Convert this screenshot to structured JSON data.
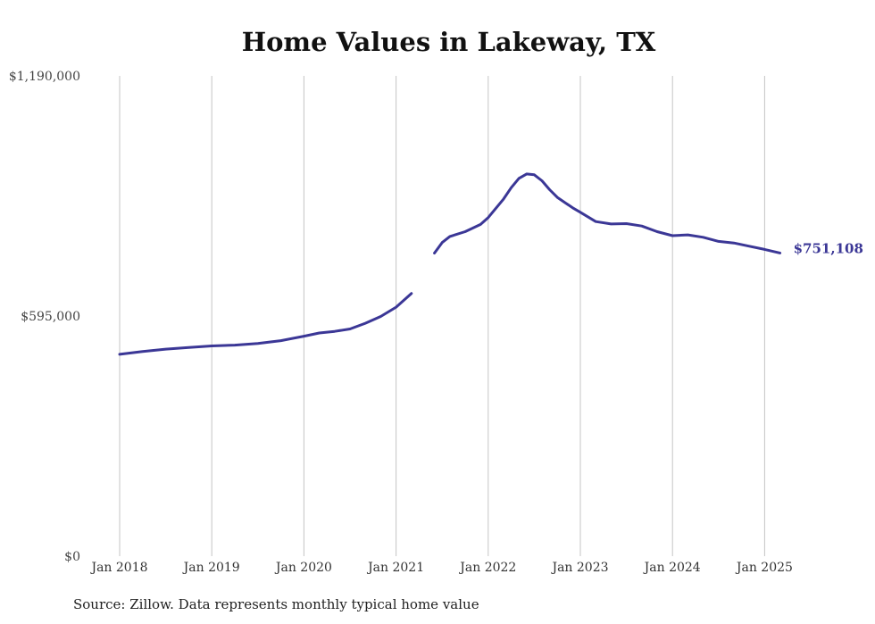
{
  "chart_data": {
    "type": "line",
    "title": "Home Values in Lakeway, TX",
    "xlabel": "",
    "ylabel": "",
    "ylim": [
      0,
      1190000
    ],
    "y_ticks": [
      {
        "value": 1190000,
        "label": "$1,190,000"
      },
      {
        "value": 595000,
        "label": "$595,000"
      },
      {
        "value": 0,
        "label": "$0"
      }
    ],
    "x_ticks": [
      {
        "value": "2018-01",
        "label": "Jan 2018"
      },
      {
        "value": "2019-01",
        "label": "Jan 2019"
      },
      {
        "value": "2020-01",
        "label": "Jan 2020"
      },
      {
        "value": "2021-01",
        "label": "Jan 2021"
      },
      {
        "value": "2022-01",
        "label": "Jan 2022"
      },
      {
        "value": "2023-01",
        "label": "Jan 2023"
      },
      {
        "value": "2024-01",
        "label": "Jan 2024"
      },
      {
        "value": "2025-01",
        "label": "Jan 2025"
      }
    ],
    "x_range": [
      "2018-01",
      "2025-03"
    ],
    "grid": "vertical",
    "color": "#3b3796",
    "series": [
      {
        "segments": [
          {
            "x": [
              "2018-01",
              "2018-04",
              "2018-07",
              "2018-10",
              "2019-01",
              "2019-04",
              "2019-07",
              "2019-10",
              "2020-01",
              "2020-03",
              "2020-05",
              "2020-07",
              "2020-09",
              "2020-11",
              "2021-01",
              "2021-03"
            ],
            "y": [
              500000,
              507000,
              513000,
              517000,
              521000,
              523000,
              527000,
              534000,
              545000,
              553000,
              557000,
              563000,
              577000,
              594000,
              617000,
              651000
            ]
          },
          {
            "x": [
              "2021-06",
              "2021-07",
              "2021-08",
              "2021-10",
              "2021-12",
              "2022-01",
              "2022-03",
              "2022-04",
              "2022-05",
              "2022-06",
              "2022-07",
              "2022-08",
              "2022-09",
              "2022-10",
              "2022-12",
              "2023-01",
              "2023-03",
              "2023-05",
              "2023-07",
              "2023-09",
              "2023-11",
              "2024-01",
              "2024-03",
              "2024-05",
              "2024-07",
              "2024-09",
              "2024-11",
              "2025-01",
              "2025-03"
            ],
            "y": [
              751000,
              777000,
              792000,
              804000,
              822000,
              839000,
              885000,
              913000,
              936000,
              947000,
              945000,
              930000,
              908000,
              889000,
              863000,
              852000,
              829000,
              823000,
              824000,
              818000,
              804000,
              794000,
              796000,
              790000,
              780000,
              776000,
              768000,
              760000,
              751108
            ]
          }
        ]
      }
    ],
    "end_label": "$751,108"
  },
  "source_note": "Source: Zillow. Data represents monthly typical home value"
}
